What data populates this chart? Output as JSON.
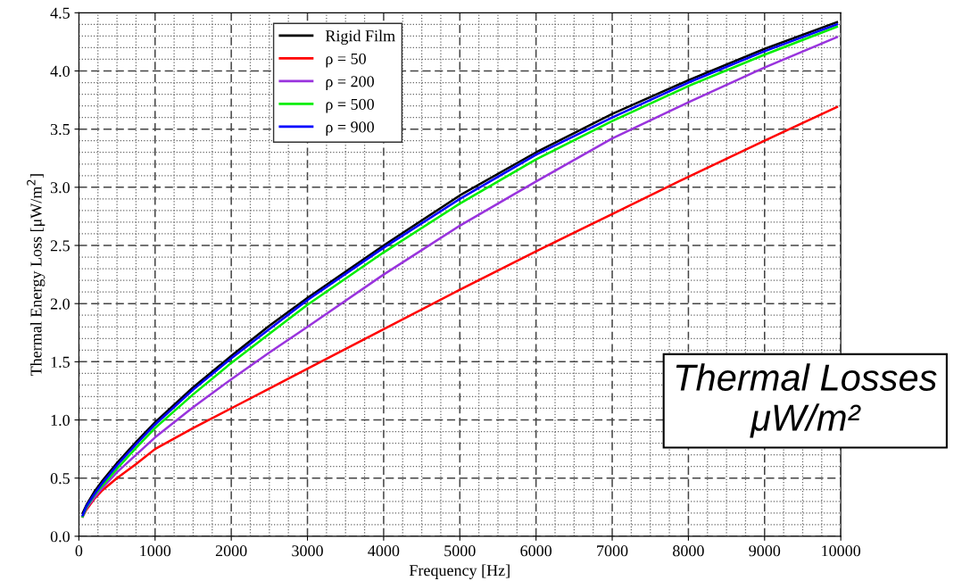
{
  "chart_data": {
    "type": "line",
    "xlabel": "Frequency [Hz]",
    "ylabel": "Thermal Energy Loss [μW/m$^{2}$]",
    "annotations": [
      "Thermal Losses\nμW/m²"
    ],
    "x": [
      50,
      100,
      200,
      300,
      500,
      750,
      1000,
      1500,
      2000,
      2500,
      3000,
      4000,
      5000,
      6000,
      7000,
      8000,
      9000,
      9950
    ],
    "series": [
      {
        "name": "Rigid Film",
        "color": "#000000",
        "values": [
          0.2,
          0.27,
          0.38,
          0.47,
          0.63,
          0.81,
          0.98,
          1.28,
          1.55,
          1.81,
          2.05,
          2.5,
          2.93,
          3.3,
          3.63,
          3.92,
          4.19,
          4.42
        ]
      },
      {
        "name": "ρ = 50",
        "color": "#ff0000",
        "values": [
          0.17,
          0.23,
          0.32,
          0.39,
          0.5,
          0.62,
          0.75,
          0.93,
          1.1,
          1.27,
          1.44,
          1.78,
          2.12,
          2.45,
          2.77,
          3.09,
          3.4,
          3.69
        ]
      },
      {
        "name": "ρ = 200",
        "color": "#9933dd",
        "values": [
          0.17,
          0.24,
          0.33,
          0.41,
          0.55,
          0.7,
          0.85,
          1.11,
          1.35,
          1.58,
          1.8,
          2.25,
          2.67,
          3.05,
          3.42,
          3.73,
          4.03,
          4.29
        ]
      },
      {
        "name": "ρ = 500",
        "color": "#00ee00",
        "values": [
          0.17,
          0.25,
          0.35,
          0.43,
          0.58,
          0.76,
          0.93,
          1.22,
          1.49,
          1.74,
          1.99,
          2.44,
          2.86,
          3.24,
          3.57,
          3.87,
          4.14,
          4.38
        ]
      },
      {
        "name": "ρ = 900",
        "color": "#0000ff",
        "values": [
          0.18,
          0.26,
          0.36,
          0.45,
          0.61,
          0.79,
          0.96,
          1.26,
          1.53,
          1.78,
          2.03,
          2.48,
          2.9,
          3.28,
          3.6,
          3.9,
          4.17,
          4.4
        ]
      }
    ],
    "xlim": [
      0,
      10000
    ],
    "xticks": [
      0,
      1000,
      2000,
      3000,
      4000,
      5000,
      6000,
      7000,
      8000,
      9000,
      10000
    ],
    "ylim": [
      0,
      4.5
    ],
    "yticks": [
      {
        "value": 0,
        "label": "0.0"
      },
      0.5,
      {
        "value": 1,
        "label": "1.0"
      },
      1.5,
      {
        "value": 2,
        "label": "2.0"
      },
      2.5,
      {
        "value": 3,
        "label": "3.0"
      },
      3.5,
      {
        "value": 4,
        "label": "4.0"
      },
      4.5
    ],
    "grid": true,
    "legend": "top left",
    "marker": "none",
    "line_style": "solid"
  }
}
